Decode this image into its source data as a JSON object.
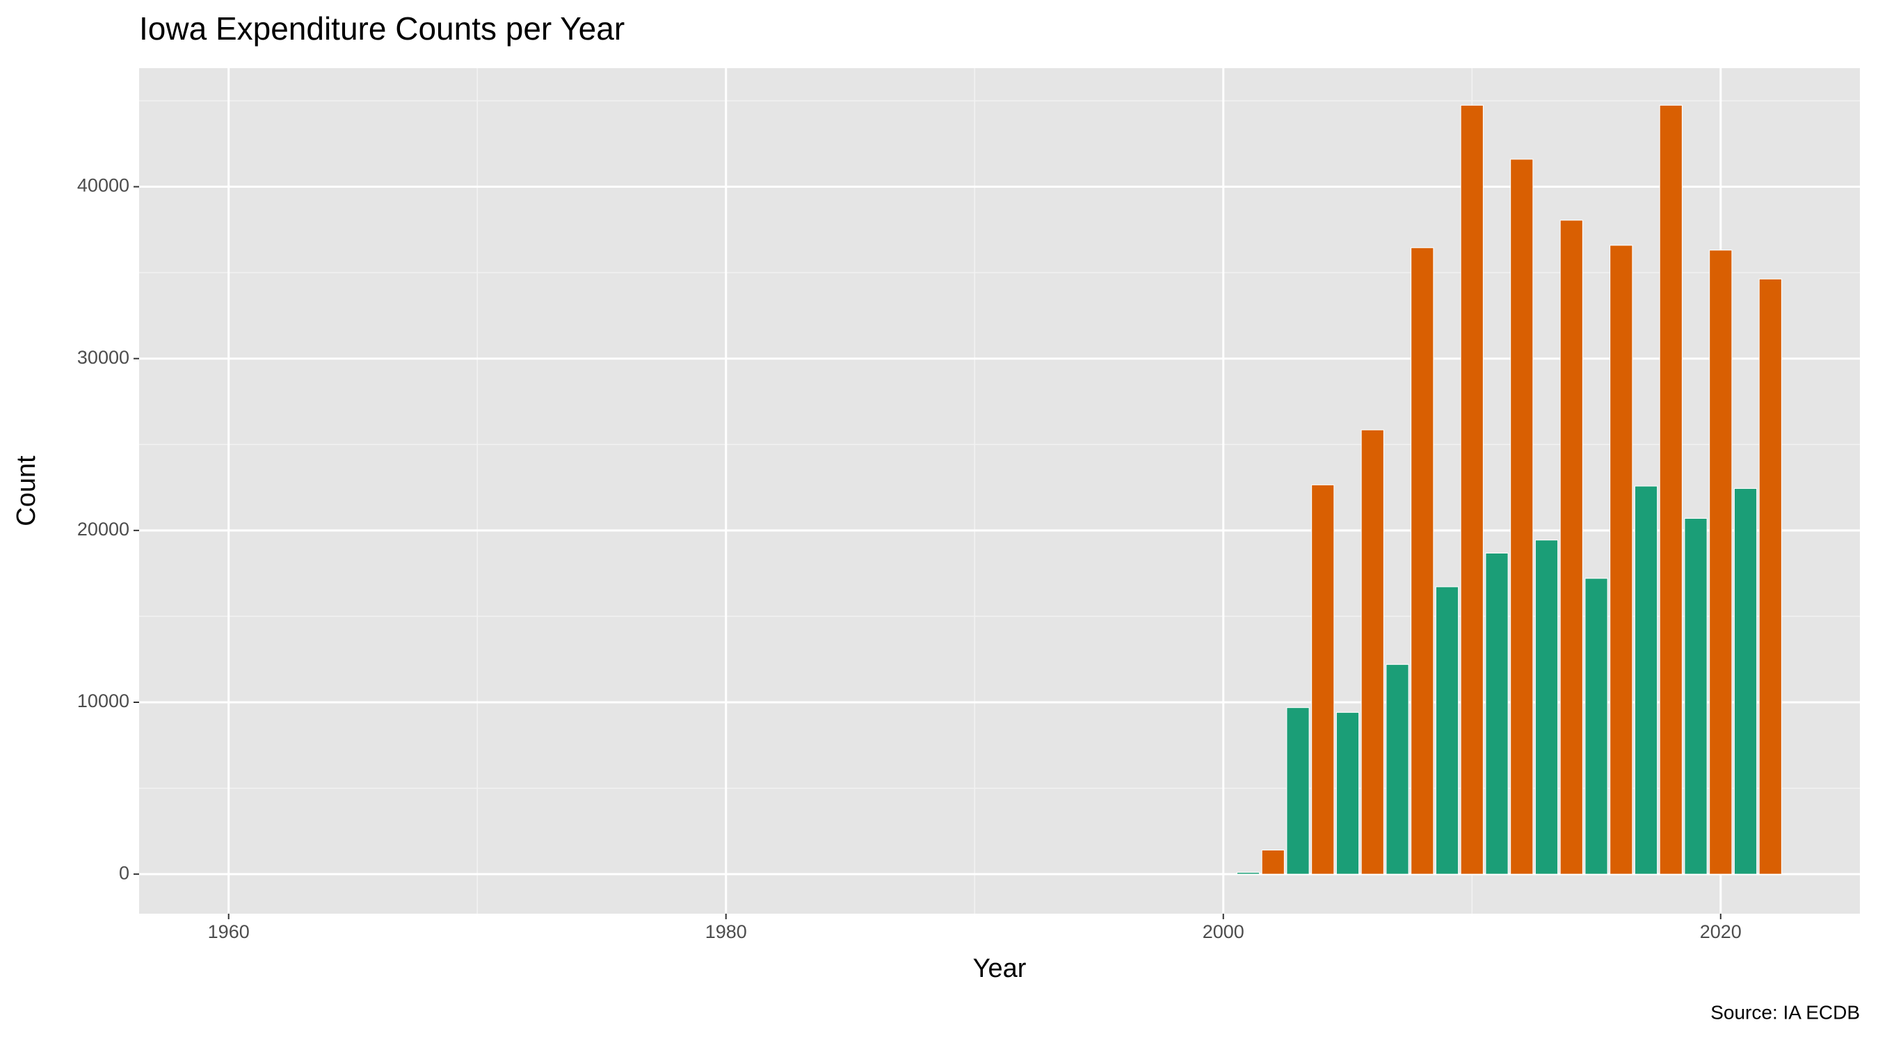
{
  "chart_data": {
    "type": "bar",
    "title": "Iowa Expenditure Counts per Year",
    "x_label": "Year",
    "y_label": "Count",
    "caption": "Source: IA ECDB",
    "x": [
      2001,
      2002,
      2003,
      2004,
      2005,
      2006,
      2007,
      2008,
      2009,
      2010,
      2011,
      2012,
      2013,
      2014,
      2015,
      2016,
      2017,
      2018,
      2019,
      2020,
      2021,
      2022
    ],
    "values": [
      100,
      1400,
      9690,
      22650,
      9410,
      25850,
      12200,
      36450,
      16720,
      44740,
      18680,
      41600,
      19440,
      38050,
      17210,
      36590,
      22580,
      44740,
      20700,
      36310,
      22440,
      34630
    ],
    "colors": [
      "#1b9e77",
      "#d95f02",
      "#1b9e77",
      "#d95f02",
      "#1b9e77",
      "#d95f02",
      "#1b9e77",
      "#d95f02",
      "#1b9e77",
      "#d95f02",
      "#1b9e77",
      "#d95f02",
      "#1b9e77",
      "#d95f02",
      "#1b9e77",
      "#d95f02",
      "#1b9e77",
      "#d95f02",
      "#1b9e77",
      "#d95f02",
      "#1b9e77",
      "#d95f02"
    ],
    "xlim": [
      1956.4,
      2025.6
    ],
    "xticks": [
      1960,
      1980,
      2000,
      2020
    ],
    "x_minor_ticks": [
      1970,
      1990,
      2010
    ],
    "ylim": [
      -2300,
      46900
    ],
    "yticks": [
      0,
      10000,
      20000,
      30000,
      40000
    ],
    "y_minor_ticks": [
      5000,
      15000,
      25000,
      35000,
      45000
    ],
    "grid": true
  }
}
